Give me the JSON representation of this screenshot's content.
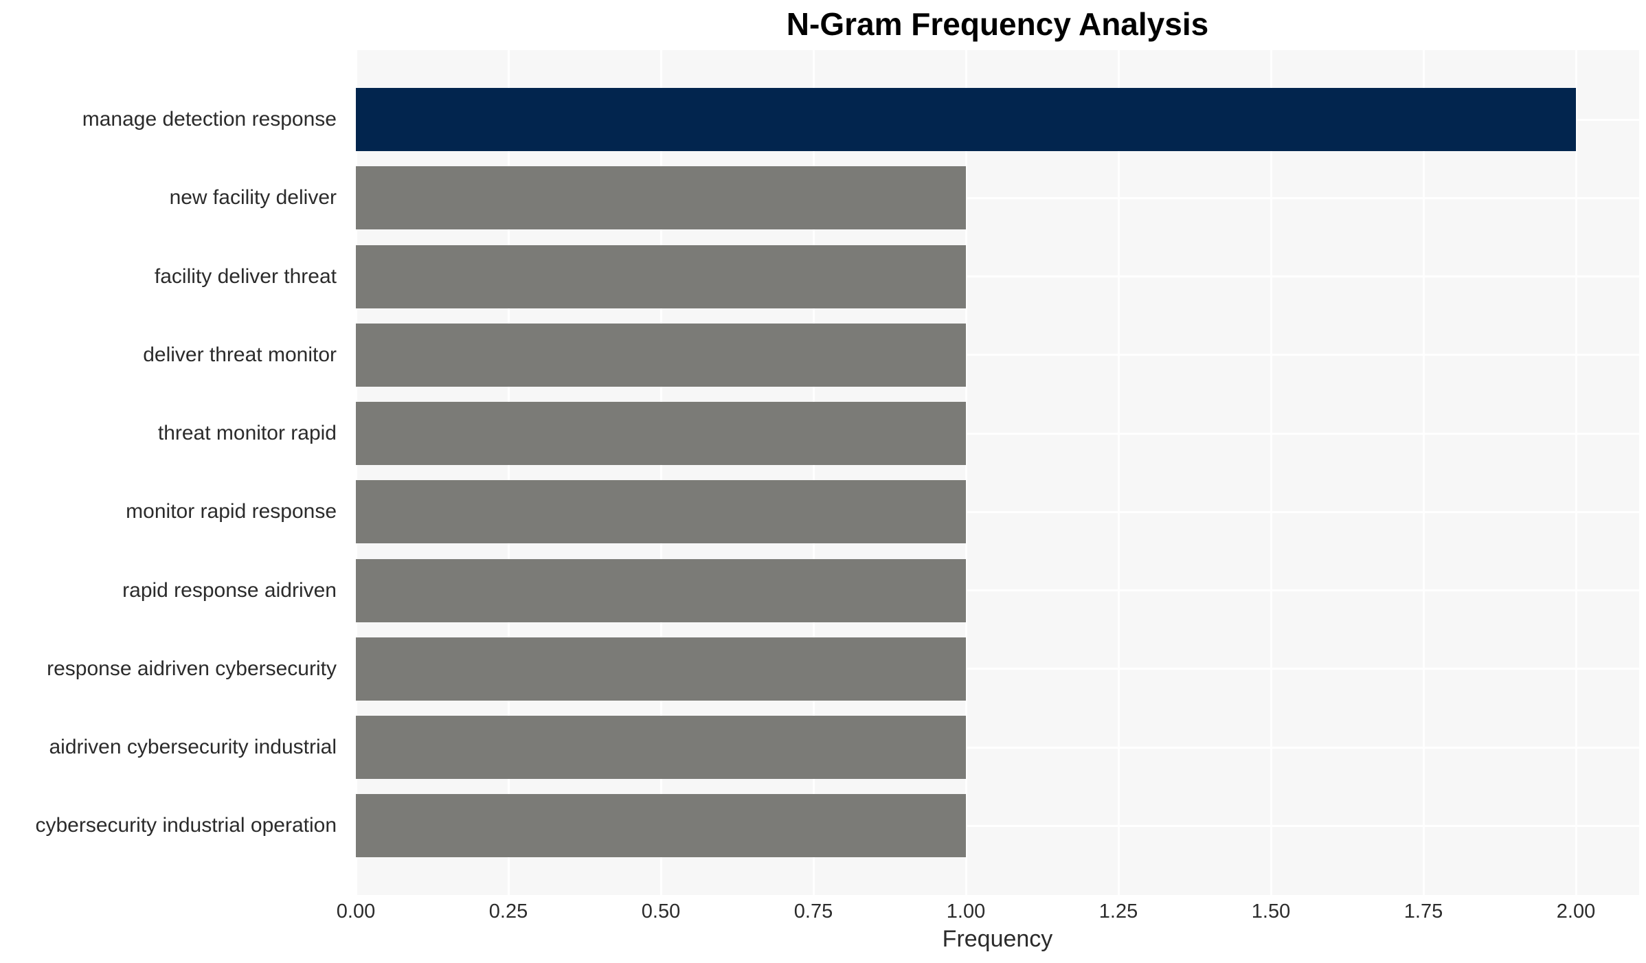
{
  "title": "N-Gram Frequency Analysis",
  "chart_data": {
    "type": "bar",
    "orientation": "horizontal",
    "title": "N-Gram Frequency Analysis",
    "xlabel": "Frequency",
    "ylabel": "",
    "categories": [
      "manage detection response",
      "new facility deliver",
      "facility deliver threat",
      "deliver threat monitor",
      "threat monitor rapid",
      "monitor rapid response",
      "rapid response aidriven",
      "response aidriven cybersecurity",
      "aidriven cybersecurity industrial",
      "cybersecurity industrial operation"
    ],
    "values": [
      2,
      1,
      1,
      1,
      1,
      1,
      1,
      1,
      1,
      1
    ],
    "bar_colors": [
      "#02254e",
      "#7b7b77",
      "#7b7b77",
      "#7b7b77",
      "#7b7b77",
      "#7b7b77",
      "#7b7b77",
      "#7b7b77",
      "#7b7b77",
      "#7b7b77"
    ],
    "xlim": [
      0,
      2.104
    ],
    "xticks": [
      {
        "value": 0.0,
        "label": "0.00"
      },
      {
        "value": 0.25,
        "label": "0.25"
      },
      {
        "value": 0.5,
        "label": "0.50"
      },
      {
        "value": 0.75,
        "label": "0.75"
      },
      {
        "value": 1.0,
        "label": "1.00"
      },
      {
        "value": 1.25,
        "label": "1.25"
      },
      {
        "value": 1.5,
        "label": "1.50"
      },
      {
        "value": 1.75,
        "label": "1.75"
      },
      {
        "value": 2.0,
        "label": "2.00"
      }
    ],
    "grid": true,
    "legend": false,
    "colors": {
      "highlight_bar": "#02254e",
      "default_bar": "#7b7b77",
      "plot_background": "#f7f7f7",
      "gridline": "#ffffff",
      "text": "#2b2b2b",
      "title_text": "#000000"
    }
  }
}
